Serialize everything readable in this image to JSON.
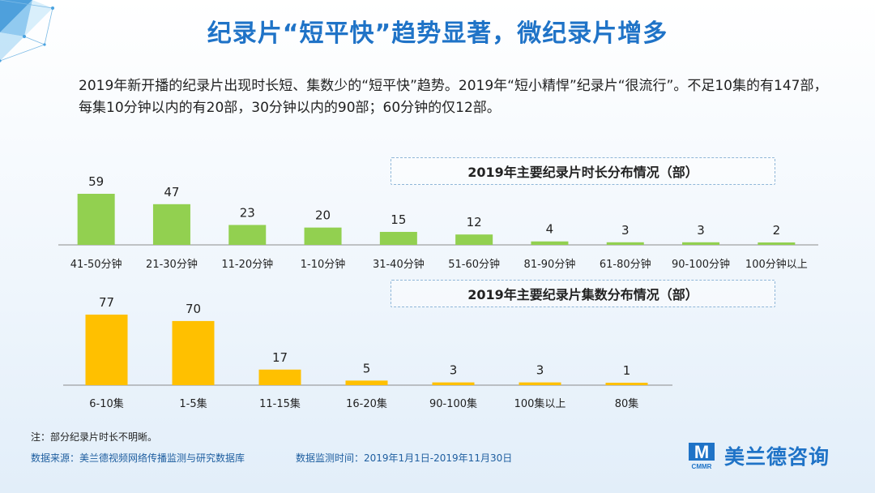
{
  "title": "纪录片“短平快”趋势显著，微纪录片增多",
  "description": "2019年新开播的纪录片出现时长短、集数少的“短平快”趋势。2019年“短小精悍”纪录片“很流行”。不足10集的有147部，每集10分钟以内的有20部，30分钟以内的90部；60分钟的仅12部。",
  "footnote": "注：部分纪录片时长不明晰。",
  "source": "数据来源：美兰德视频网络传播监测与研究数据库",
  "monitor_time": "数据监测时间：2019年1月1日-2019年11月30日",
  "logo": {
    "text": "美兰德咨询",
    "mark": "M",
    "sub": "CMMR",
    "color": "#1f73c7"
  },
  "colors": {
    "title": "#1f73c7",
    "bar_green": "#92d050",
    "bar_yellow": "#ffc000",
    "axis": "#8c8c8c"
  },
  "chart_data": [
    {
      "type": "bar",
      "title": "2019年主要纪录片时长分布情况（部）",
      "categories": [
        "41-50分钟",
        "21-30分钟",
        "11-20分钟",
        "1-10分钟",
        "31-40分钟",
        "51-60分钟",
        "81-90分钟",
        "61-80分钟",
        "90-100分钟",
        "100分钟以上"
      ],
      "values": [
        59,
        47,
        23,
        20,
        15,
        12,
        4,
        3,
        3,
        2
      ],
      "color": "#92d050"
    },
    {
      "type": "bar",
      "title": "2019年主要纪录片集数分布情况（部）",
      "categories": [
        "6-10集",
        "1-5集",
        "11-15集",
        "16-20集",
        "90-100集",
        "100集以上",
        "80集"
      ],
      "values": [
        77,
        70,
        17,
        5,
        3,
        3,
        1
      ],
      "color": "#ffc000"
    }
  ]
}
